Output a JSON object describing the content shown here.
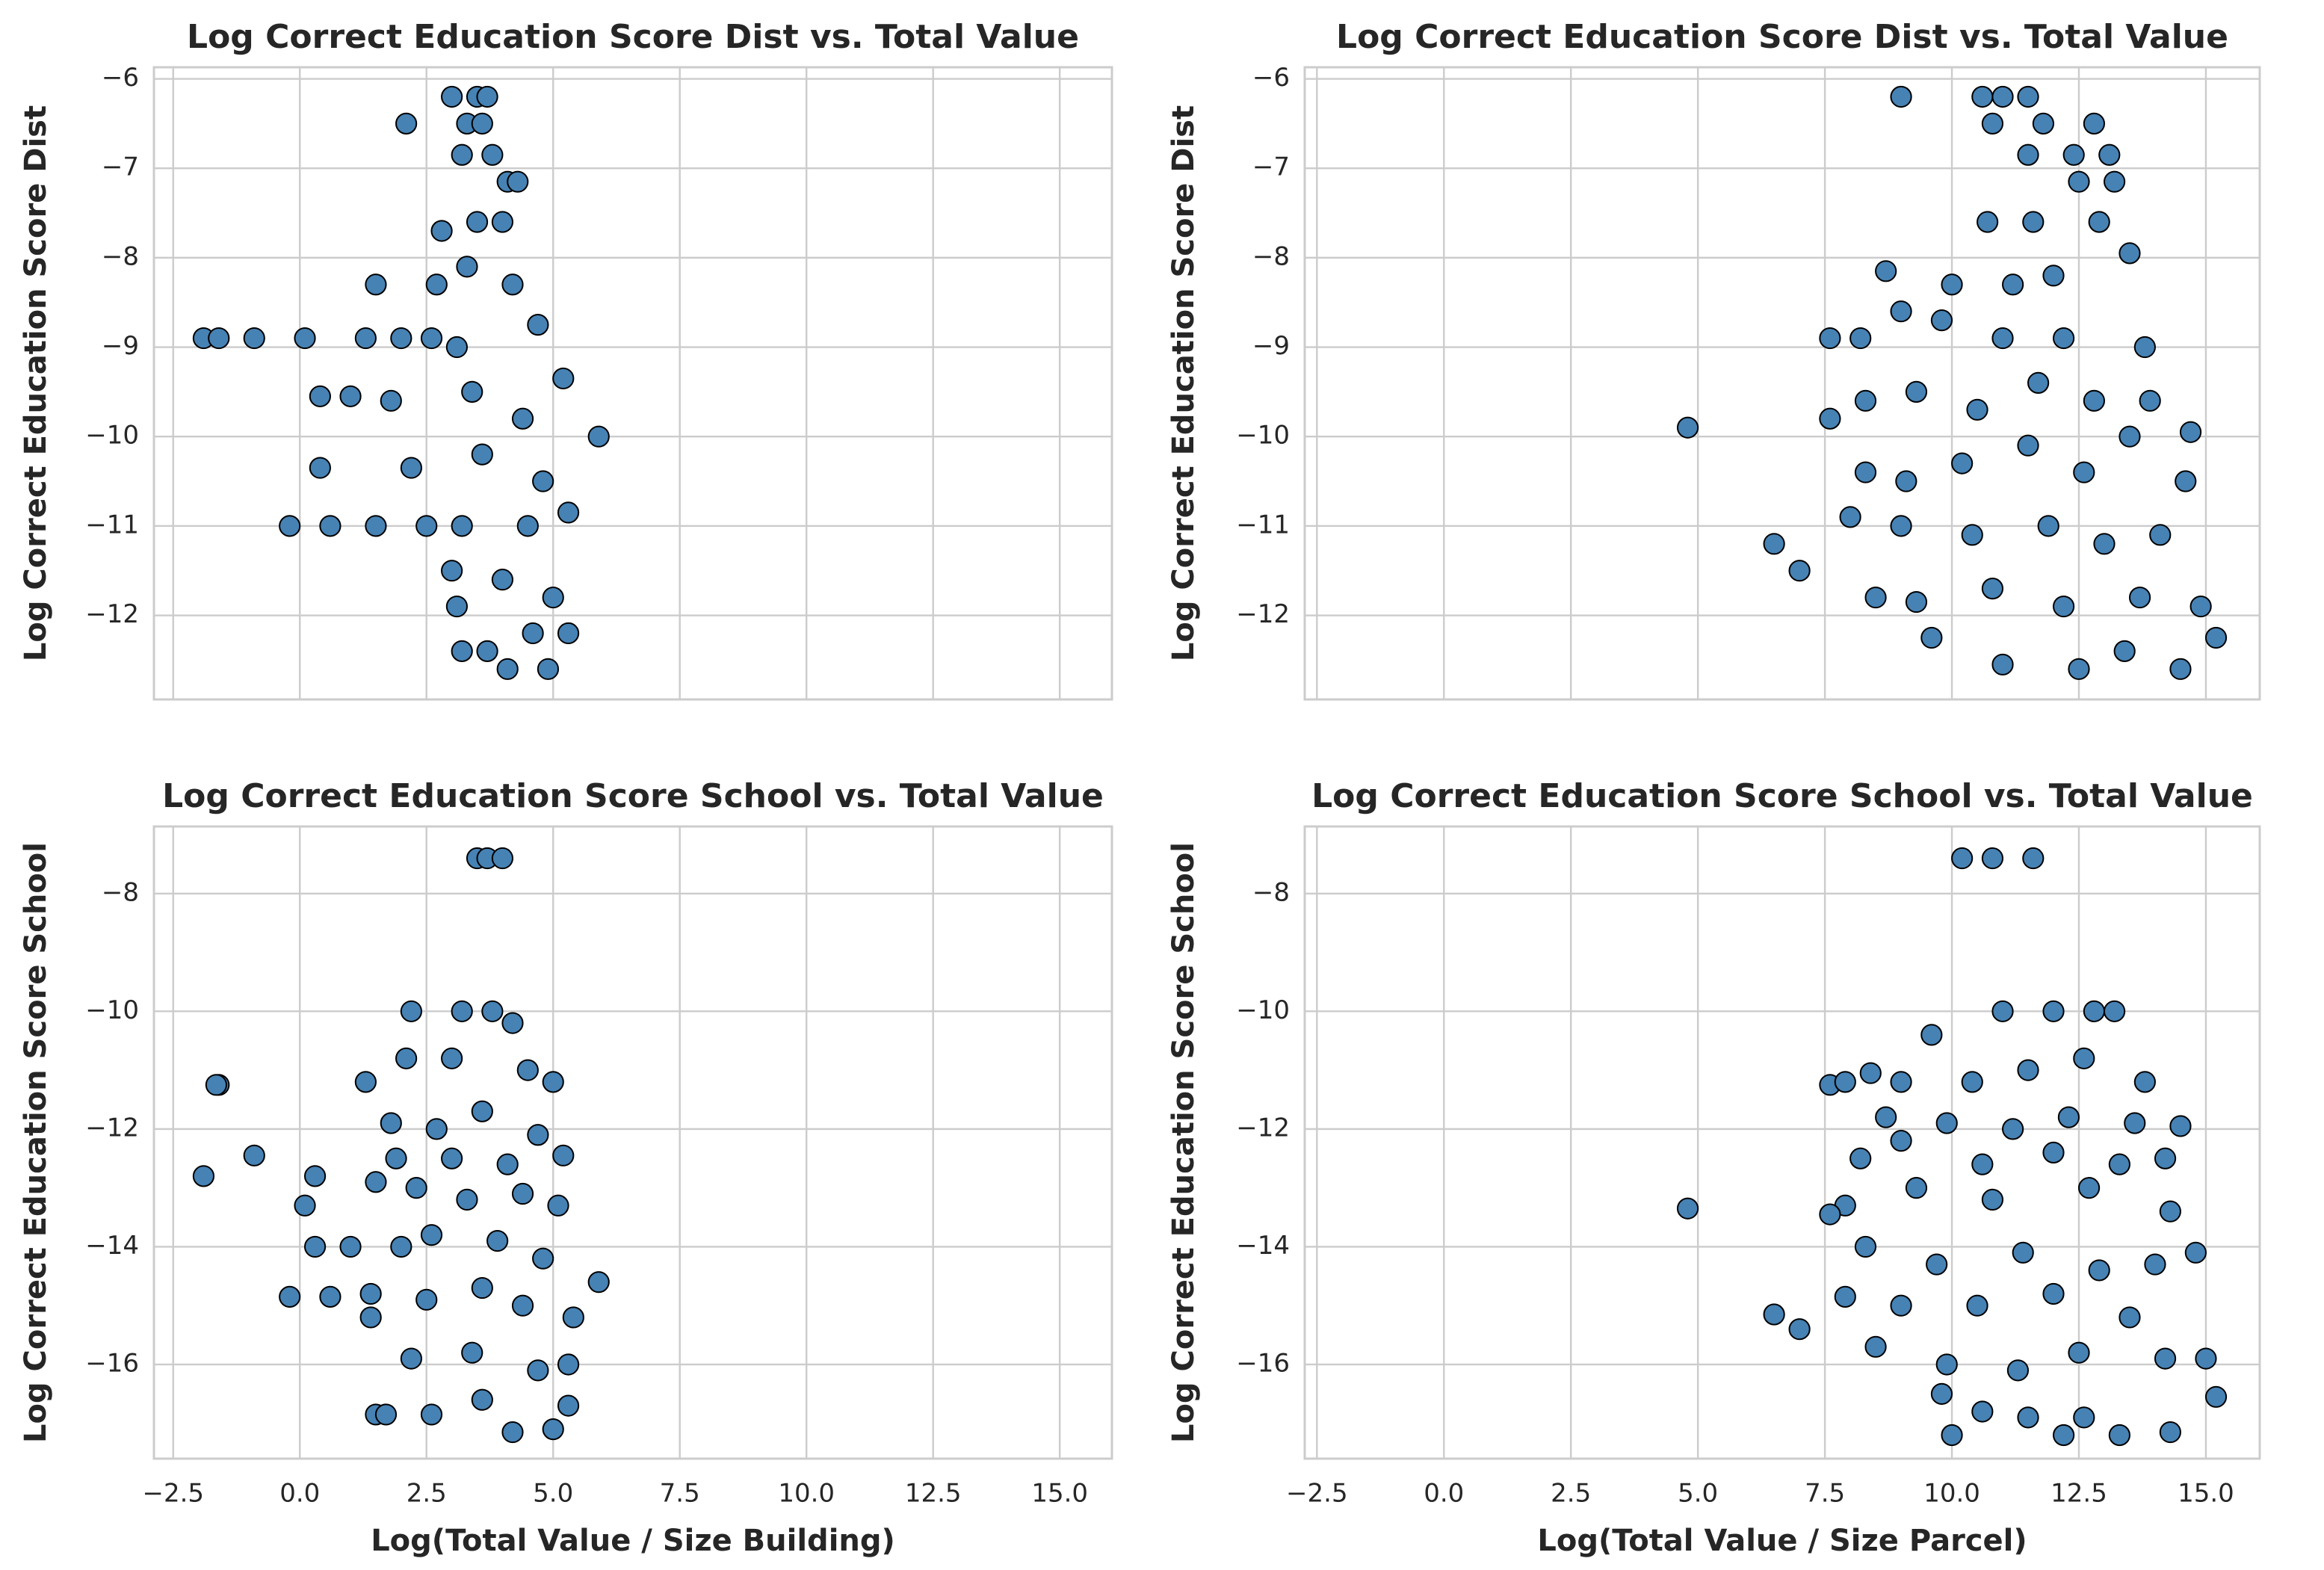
{
  "chart_data": [
    {
      "type": "scatter",
      "title": "Log Correct Education Score Dist vs. Total Value",
      "y_label": "Log Correct Education Score Dist",
      "xlim": [
        -2.88,
        16.03
      ],
      "ylim": [
        -12.94,
        -5.87
      ],
      "grid": true,
      "xtick_labels": false,
      "xticks": [
        -2.5,
        0,
        2.5,
        5,
        7.5,
        10,
        12.5,
        15
      ],
      "yticks": [
        {
          "value": -12,
          "label": "−12"
        },
        {
          "value": -11,
          "label": "−11"
        },
        {
          "value": -10,
          "label": "−10"
        },
        {
          "value": -9,
          "label": "−9"
        },
        {
          "value": -8,
          "label": "−8"
        },
        {
          "value": -7,
          "label": "−7"
        },
        {
          "value": -6,
          "label": "−6"
        }
      ],
      "series": [
        {
          "color": "#4682b4",
          "x": [
            3.0,
            3.5,
            3.7,
            2.1,
            3.3,
            3.6,
            3.2,
            3.8,
            4.1,
            4.3,
            2.8,
            3.5,
            4.0,
            1.5,
            2.7,
            3.3,
            4.2,
            -1.9,
            -1.6,
            -0.9,
            0.1,
            1.3,
            2.0,
            2.6,
            3.1,
            4.7,
            0.4,
            1.0,
            1.8,
            3.4,
            4.4,
            5.2,
            5.9,
            0.4,
            2.2,
            3.6,
            4.8,
            -0.2,
            0.6,
            1.5,
            2.5,
            3.2,
            4.5,
            5.3,
            3.0,
            4.0,
            3.1,
            4.6,
            5.3,
            3.2,
            3.7,
            4.1,
            4.9,
            5.0
          ],
          "values": [
            -6.2,
            -6.2,
            -6.2,
            -6.5,
            -6.5,
            -6.5,
            -6.85,
            -6.85,
            -7.15,
            -7.15,
            -7.7,
            -7.6,
            -7.6,
            -8.3,
            -8.3,
            -8.1,
            -8.3,
            -8.9,
            -8.9,
            -8.9,
            -8.9,
            -8.9,
            -8.9,
            -8.9,
            -9.0,
            -8.75,
            -9.55,
            -9.55,
            -9.6,
            -9.5,
            -9.8,
            -9.35,
            -10.0,
            -10.35,
            -10.35,
            -10.2,
            -10.5,
            -11.0,
            -11.0,
            -11.0,
            -11.0,
            -11.0,
            -11.0,
            -10.85,
            -11.5,
            -11.6,
            -11.9,
            -12.2,
            -12.2,
            -12.4,
            -12.4,
            -12.6,
            -12.6,
            -11.8
          ]
        }
      ]
    },
    {
      "type": "scatter",
      "title": "Log Correct Education Score Dist vs. Total Value",
      "y_label": "Log Correct Education Score Dist",
      "xlim": [
        -2.74,
        16.06
      ],
      "ylim": [
        -12.94,
        -5.87
      ],
      "grid": true,
      "xtick_labels": false,
      "xticks": [
        -2.5,
        0,
        2.5,
        5,
        7.5,
        10,
        12.5,
        15
      ],
      "yticks": [
        {
          "value": -12,
          "label": "−12"
        },
        {
          "value": -11,
          "label": "−11"
        },
        {
          "value": -10,
          "label": "−10"
        },
        {
          "value": -9,
          "label": "−9"
        },
        {
          "value": -8,
          "label": "−8"
        },
        {
          "value": -7,
          "label": "−7"
        },
        {
          "value": -6,
          "label": "−6"
        }
      ],
      "series": [
        {
          "color": "#4682b4",
          "x": [
            9.0,
            10.6,
            11.0,
            11.5,
            10.8,
            11.8,
            12.8,
            11.5,
            12.4,
            13.1,
            12.5,
            13.2,
            10.7,
            11.6,
            12.9,
            8.7,
            10.0,
            11.2,
            12.0,
            13.5,
            7.6,
            8.2,
            9.0,
            9.8,
            11.0,
            12.2,
            13.8,
            4.8,
            7.6,
            8.3,
            9.3,
            10.5,
            11.7,
            12.8,
            13.9,
            14.7,
            8.3,
            9.1,
            10.2,
            11.5,
            12.6,
            13.5,
            14.6,
            6.5,
            7.0,
            8.0,
            9.0,
            10.4,
            11.9,
            13.0,
            14.1,
            8.5,
            9.3,
            10.8,
            12.2,
            13.7,
            14.9,
            9.6,
            11.0,
            12.5,
            13.4,
            14.5,
            15.2
          ],
          "values": [
            -6.2,
            -6.2,
            -6.2,
            -6.2,
            -6.5,
            -6.5,
            -6.5,
            -6.85,
            -6.85,
            -6.85,
            -7.15,
            -7.15,
            -7.6,
            -7.6,
            -7.6,
            -8.15,
            -8.3,
            -8.3,
            -8.2,
            -7.95,
            -8.9,
            -8.9,
            -8.6,
            -8.7,
            -8.9,
            -8.9,
            -9.0,
            -9.9,
            -9.8,
            -9.6,
            -9.5,
            -9.7,
            -9.4,
            -9.6,
            -9.6,
            -9.95,
            -10.4,
            -10.5,
            -10.3,
            -10.1,
            -10.4,
            -10.0,
            -10.5,
            -11.2,
            -11.5,
            -10.9,
            -11.0,
            -11.1,
            -11.0,
            -11.2,
            -11.1,
            -11.8,
            -11.85,
            -11.7,
            -11.9,
            -11.8,
            -11.9,
            -12.25,
            -12.55,
            -12.6,
            -12.4,
            -12.6,
            -12.25
          ]
        }
      ]
    },
    {
      "type": "scatter",
      "title": "Log Correct Education Score School vs. Total Value",
      "y_label": "Log Correct Education Score School",
      "x_label": "Log(Total Value / Size Building)",
      "xlim": [
        -2.88,
        16.03
      ],
      "ylim": [
        -17.6,
        -6.86
      ],
      "grid": true,
      "xtick_labels": true,
      "xticks": [
        {
          "value": -2.5,
          "label": "−2.5"
        },
        {
          "value": 0,
          "label": "0.0"
        },
        2.5,
        {
          "value": 5,
          "label": "5.0"
        },
        7.5,
        {
          "value": 10,
          "label": "10.0"
        },
        12.5,
        {
          "value": 15,
          "label": "15.0"
        }
      ],
      "yticks": [
        {
          "value": -16,
          "label": "−16"
        },
        {
          "value": -14,
          "label": "−14"
        },
        {
          "value": -12,
          "label": "−12"
        },
        {
          "value": -10,
          "label": "−10"
        },
        {
          "value": -8,
          "label": "−8"
        }
      ],
      "series": [
        {
          "color": "#4682b4",
          "x": [
            3.5,
            3.7,
            4.0,
            2.2,
            3.2,
            3.8,
            4.2,
            1.3,
            -1.6,
            -1.65,
            2.1,
            3.0,
            4.5,
            5.0,
            1.8,
            2.7,
            3.6,
            4.7,
            -0.9,
            1.9,
            3.0,
            4.1,
            5.2,
            -1.9,
            0.3,
            1.5,
            2.3,
            3.3,
            4.4,
            5.1,
            0.1,
            2.6,
            3.9,
            0.3,
            1.0,
            2.0,
            4.8,
            5.9,
            -0.2,
            0.6,
            1.4,
            2.5,
            3.6,
            4.4,
            5.4,
            1.4,
            2.2,
            3.4,
            4.7,
            5.3,
            1.5,
            1.7,
            2.6,
            3.6,
            4.2,
            5.0,
            5.3
          ],
          "values": [
            -7.4,
            -7.4,
            -7.4,
            -10.0,
            -10.0,
            -10.0,
            -10.2,
            -11.2,
            -11.25,
            -11.25,
            -10.8,
            -10.8,
            -11.0,
            -11.2,
            -11.9,
            -12.0,
            -11.7,
            -12.1,
            -12.45,
            -12.5,
            -12.5,
            -12.6,
            -12.45,
            -12.8,
            -12.8,
            -12.9,
            -13.0,
            -13.2,
            -13.1,
            -13.3,
            -13.3,
            -13.8,
            -13.9,
            -14.0,
            -14.0,
            -14.0,
            -14.2,
            -14.6,
            -14.85,
            -14.85,
            -14.8,
            -14.9,
            -14.7,
            -15.0,
            -15.2,
            -15.2,
            -15.9,
            -15.8,
            -16.1,
            -16.0,
            -16.85,
            -16.85,
            -16.85,
            -16.6,
            -17.15,
            -17.1,
            -16.7
          ]
        }
      ]
    },
    {
      "type": "scatter",
      "title": "Log Correct Education Score School vs. Total Value",
      "y_label": "Log Correct Education Score School",
      "x_label": "Log(Total Value / Size Parcel)",
      "xlim": [
        -2.74,
        16.06
      ],
      "ylim": [
        -17.6,
        -6.86
      ],
      "grid": true,
      "xtick_labels": true,
      "xticks": [
        {
          "value": -2.5,
          "label": "−2.5"
        },
        {
          "value": 0,
          "label": "0.0"
        },
        2.5,
        {
          "value": 5,
          "label": "5.0"
        },
        7.5,
        {
          "value": 10,
          "label": "10.0"
        },
        12.5,
        {
          "value": 15,
          "label": "15.0"
        }
      ],
      "yticks": [
        {
          "value": -16,
          "label": "−16"
        },
        {
          "value": -14,
          "label": "−14"
        },
        {
          "value": -12,
          "label": "−12"
        },
        {
          "value": -10,
          "label": "−10"
        },
        {
          "value": -8,
          "label": "−8"
        }
      ],
      "series": [
        {
          "color": "#4682b4",
          "x": [
            10.2,
            10.8,
            11.6,
            11.0,
            12.0,
            12.8,
            13.2,
            9.6,
            8.4,
            7.6,
            7.9,
            9.0,
            10.4,
            11.5,
            12.6,
            13.8,
            8.7,
            9.9,
            11.2,
            12.3,
            13.6,
            14.5,
            8.2,
            9.0,
            10.6,
            12.0,
            13.3,
            14.2,
            7.9,
            9.3,
            10.8,
            12.7,
            14.3,
            4.8,
            7.6,
            8.3,
            9.7,
            11.4,
            12.9,
            14.0,
            14.8,
            7.9,
            9.0,
            10.5,
            12.0,
            13.5,
            6.5,
            7.0,
            8.5,
            9.9,
            11.3,
            12.5,
            14.2,
            15.0,
            9.8,
            10.6,
            11.5,
            12.6,
            10.0,
            12.2,
            13.3,
            14.3,
            15.2
          ],
          "values": [
            -7.4,
            -7.4,
            -7.4,
            -10.0,
            -10.0,
            -10.0,
            -10.0,
            -10.4,
            -11.05,
            -11.25,
            -11.2,
            -11.2,
            -11.2,
            -11.0,
            -10.8,
            -11.2,
            -11.8,
            -11.9,
            -12.0,
            -11.8,
            -11.9,
            -11.95,
            -12.5,
            -12.2,
            -12.6,
            -12.4,
            -12.6,
            -12.5,
            -13.3,
            -13.0,
            -13.2,
            -13.0,
            -13.4,
            -13.35,
            -13.45,
            -14.0,
            -14.3,
            -14.1,
            -14.4,
            -14.3,
            -14.1,
            -14.85,
            -15.0,
            -15.0,
            -14.8,
            -15.2,
            -15.15,
            -15.4,
            -15.7,
            -16.0,
            -16.1,
            -15.8,
            -15.9,
            -15.9,
            -16.5,
            -16.8,
            -16.9,
            -16.9,
            -17.2,
            -17.2,
            -17.2,
            -17.15,
            -16.55
          ]
        }
      ]
    }
  ]
}
